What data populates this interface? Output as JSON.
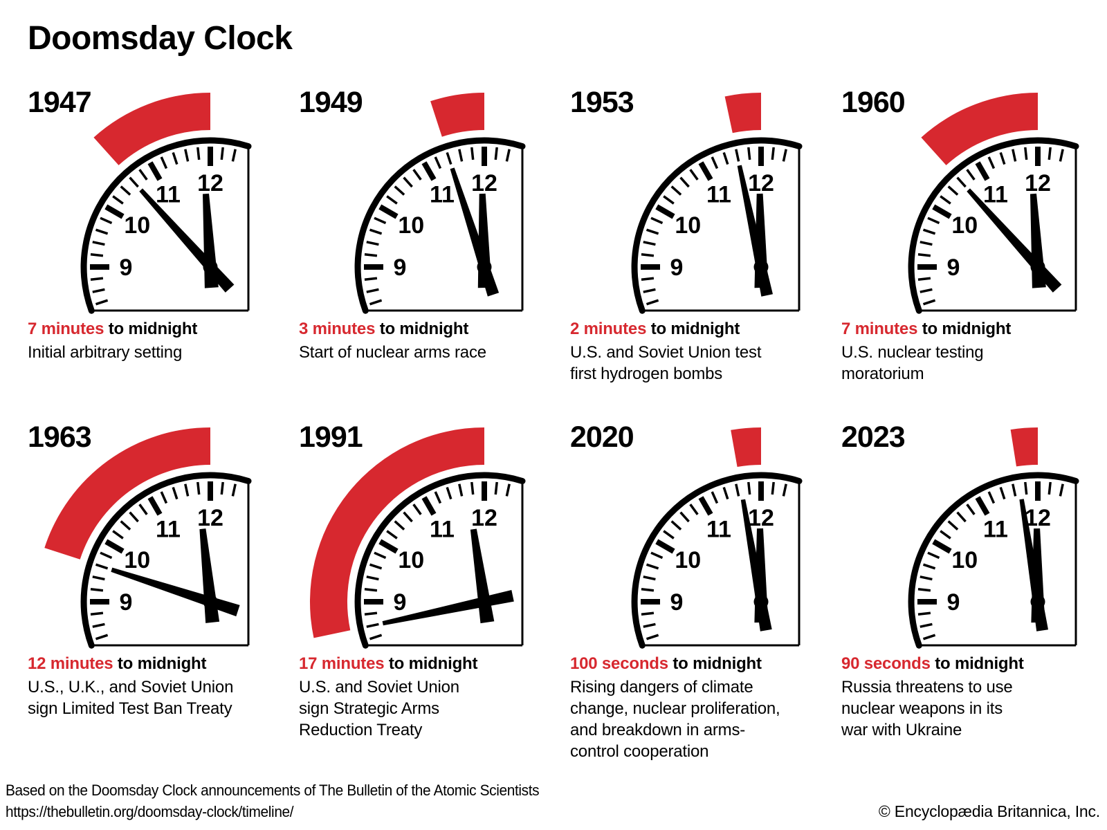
{
  "title": "Doomsday Clock",
  "colors": {
    "red": "#d7282f",
    "black": "#000000"
  },
  "clock_face": {
    "numbers": [
      "9",
      "10",
      "11",
      "12"
    ]
  },
  "clocks": [
    {
      "year": "1947",
      "minutes": 7,
      "time": "7 minutes",
      "suffix": " to midnight",
      "description": "Initial arbitrary setting"
    },
    {
      "year": "1949",
      "minutes": 3,
      "time": "3 minutes",
      "suffix": " to midnight",
      "description": "Start of nuclear arms race"
    },
    {
      "year": "1953",
      "minutes": 2,
      "time": "2 minutes",
      "suffix": " to midnight",
      "description": "U.S. and Soviet Union test\nfirst hydrogen bombs"
    },
    {
      "year": "1960",
      "minutes": 7,
      "time": "7 minutes",
      "suffix": " to midnight",
      "description": "U.S. nuclear testing\nmoratorium"
    },
    {
      "year": "1963",
      "minutes": 12,
      "time": "12 minutes",
      "suffix": " to midnight",
      "description": "U.S., U.K., and Soviet Union\nsign Limited Test Ban Treaty"
    },
    {
      "year": "1991",
      "minutes": 17,
      "time": "17 minutes",
      "suffix": " to midnight",
      "description": "U.S. and Soviet Union\nsign Strategic Arms\nReduction Treaty"
    },
    {
      "year": "2020",
      "minutes": 1.6667,
      "time": "100 seconds",
      "suffix": " to midnight",
      "description": "Rising dangers of climate\nchange, nuclear proliferation,\nand breakdown in arms-\ncontrol cooperation"
    },
    {
      "year": "2023",
      "minutes": 1.5,
      "time": "90 seconds",
      "suffix": " to midnight",
      "description": "Russia threatens to use\nnuclear weapons in its\nwar with Ukraine"
    }
  ],
  "footer": {
    "source": "Based on the Doomsday Clock announcements of The Bulletin of the Atomic Scientists",
    "url": "https://thebulletin.org/doomsday-clock/timeline/",
    "copyright": "© Encyclopædia Britannica, Inc."
  }
}
